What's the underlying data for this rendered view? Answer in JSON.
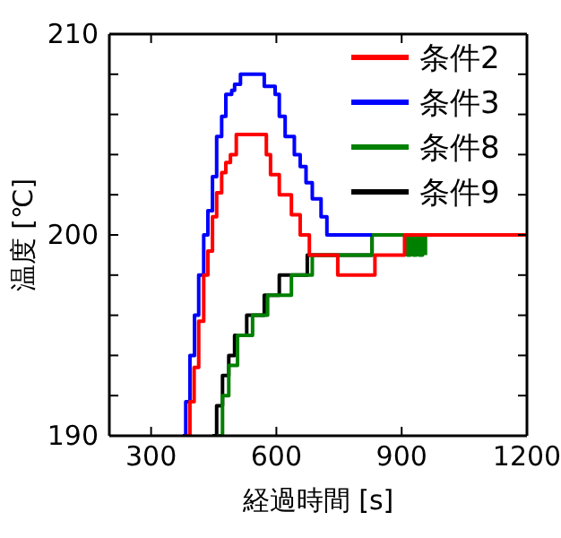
{
  "chart_data": {
    "type": "step",
    "xlabel": "経過時間 [s]",
    "ylabel": "温度 [℃]",
    "xlim": [
      200,
      1200
    ],
    "ylim": [
      190,
      210
    ],
    "xticks": [
      300,
      600,
      900,
      1200
    ],
    "yticks": [
      190,
      {
        "value": 192,
        "label": null
      },
      {
        "value": 194,
        "label": null
      },
      {
        "value": 196,
        "label": null
      },
      {
        "value": 198,
        "label": null
      },
      200,
      {
        "value": 202,
        "label": null
      },
      {
        "value": 204,
        "label": null
      },
      {
        "value": 206,
        "label": null
      },
      {
        "value": 208,
        "label": null
      },
      210
    ],
    "legend": "top right",
    "grid": false,
    "series": [
      {
        "name": "条件2",
        "color": "#ff0000",
        "x": [
          383,
          393,
          403,
          414,
          426,
          436,
          447,
          457,
          469,
          479,
          490,
          504,
          576,
          586,
          607,
          636,
          657,
          679,
          704,
          747,
          836,
          907,
          1200
        ],
        "values": [
          190,
          191.7,
          193.4,
          195.7,
          198,
          199.2,
          200.9,
          202.1,
          203.1,
          203.6,
          204,
          205,
          204,
          203,
          202,
          201,
          200,
          199,
          199,
          198,
          199,
          200,
          200
        ]
      },
      {
        "name": "条件3",
        "color": "#0000ff",
        "x": [
          376,
          383,
          393,
          404,
          414,
          426,
          436,
          447,
          457,
          469,
          479,
          493,
          500,
          514,
          561,
          571,
          597,
          607,
          621,
          643,
          657,
          671,
          686,
          707,
          721,
          829
        ],
        "values": [
          190,
          191.7,
          194,
          196,
          198,
          200,
          201.2,
          202.9,
          204.9,
          205.9,
          207,
          207.2,
          207.5,
          208,
          208,
          207.4,
          207,
          205.9,
          204.9,
          204,
          203.4,
          202.6,
          201.8,
          200.9,
          200,
          200
        ]
      },
      {
        "name": "条件8",
        "color": "#008000",
        "x": [
          457,
          471,
          486,
          507,
          543,
          579,
          636,
          686,
          829,
          914,
          921,
          928,
          935,
          942,
          950,
          957
        ],
        "values": [
          190,
          192,
          193.5,
          195,
          196,
          197,
          198,
          199,
          200,
          199,
          200,
          199,
          200,
          199,
          200,
          199
        ]
      },
      {
        "name": "条件9",
        "color": "#000000",
        "x": [
          447,
          457,
          471,
          486,
          500,
          529,
          571,
          607,
          674,
          829,
          921
        ],
        "values": [
          190,
          191.5,
          193,
          194,
          195,
          196,
          197,
          198,
          199,
          200,
          200
        ]
      }
    ]
  }
}
